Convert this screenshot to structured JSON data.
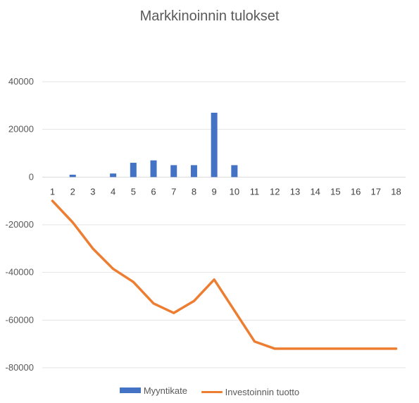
{
  "chart_data": {
    "type": "bar+line",
    "title": "Markkinoinnin tulokset",
    "xlabel": "",
    "ylabel": "",
    "categories": [
      "1",
      "2",
      "3",
      "4",
      "5",
      "6",
      "7",
      "8",
      "9",
      "10",
      "11",
      "12",
      "13",
      "14",
      "15",
      "16",
      "17",
      "18"
    ],
    "ylim": [
      -80000,
      40000
    ],
    "yticks": [
      40000,
      20000,
      0,
      -20000,
      -40000,
      -60000,
      -80000
    ],
    "grid": true,
    "legend_position": "bottom",
    "series": [
      {
        "name": "Myyntikate",
        "type": "bar",
        "color": "#4472c4",
        "values": [
          0,
          1000,
          0,
          1500,
          6000,
          7000,
          5000,
          5000,
          27000,
          5000,
          0,
          0,
          0,
          0,
          0,
          0,
          0,
          0
        ]
      },
      {
        "name": "Investoinnin tuotto",
        "type": "line",
        "color": "#ed7d31",
        "values": [
          -10000,
          -19000,
          -30000,
          -38500,
          -44000,
          -53000,
          -57000,
          -52000,
          -43000,
          -56000,
          -69000,
          -72000,
          -72000,
          -72000,
          -72000,
          -72000,
          -72000,
          -72000
        ]
      }
    ]
  }
}
